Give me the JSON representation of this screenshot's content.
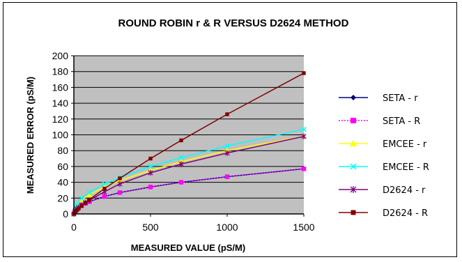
{
  "chart_data": {
    "type": "line",
    "title": "ROUND ROBIN r & R VERSUS D2624 METHOD",
    "xlabel": "MEASURED VALUE (pS/M)",
    "ylabel": "MEASURED ERROR (pS/M)",
    "xlim": [
      0,
      1500
    ],
    "ylim": [
      0,
      200
    ],
    "xticks": [
      0,
      500,
      1000,
      1500
    ],
    "yticks": [
      0,
      20,
      40,
      60,
      80,
      100,
      120,
      140,
      160,
      180,
      200
    ],
    "grid": true,
    "plot_background": "#c0c0c0",
    "legend_position": "right",
    "series": [
      {
        "name": "SETA - r",
        "color": "#000080",
        "marker": "diamond",
        "dash": "solid",
        "x": [
          0,
          5,
          10,
          20,
          30,
          50,
          75,
          100,
          200,
          300,
          500,
          700,
          1000,
          1500
        ],
        "y": [
          0,
          3.5,
          5,
          7,
          8.5,
          11,
          13.5,
          15.5,
          22,
          27,
          34,
          40,
          47,
          57
        ]
      },
      {
        "name": "SETA - R",
        "color": "#ff00ff",
        "marker": "square",
        "dash": "dotted",
        "x": [
          0,
          5,
          10,
          20,
          30,
          50,
          75,
          100,
          200,
          300,
          500,
          700,
          1000,
          1500
        ],
        "y": [
          0,
          3.5,
          5,
          7,
          8.5,
          11,
          13.5,
          15.5,
          22,
          27,
          34,
          40,
          47,
          57
        ]
      },
      {
        "name": "EMCEE - r",
        "color": "#ffff00",
        "marker": "triangle",
        "dash": "solid",
        "x": [
          0,
          10,
          20,
          50,
          100,
          200,
          300,
          500,
          700,
          1000,
          1500
        ],
        "y": [
          0,
          8,
          12,
          18,
          24,
          34,
          42,
          55,
          66,
          80,
          98
        ]
      },
      {
        "name": "EMCEE - R",
        "color": "#00ffff",
        "marker": "x",
        "dash": "solid",
        "x": [
          0,
          10,
          20,
          50,
          100,
          200,
          300,
          500,
          700,
          1000,
          1500
        ],
        "y": [
          0,
          9,
          13,
          20,
          27,
          38,
          46,
          60,
          71,
          86,
          107
        ]
      },
      {
        "name": "D2624 - r",
        "color": "#800080",
        "marker": "star",
        "dash": "solid",
        "x": [
          0,
          10,
          20,
          30,
          50,
          75,
          100,
          200,
          300,
          500,
          700,
          1000,
          1500
        ],
        "y": [
          0,
          4,
          6,
          8,
          11,
          14,
          17,
          28,
          38,
          52,
          63,
          77,
          98
        ]
      },
      {
        "name": "D2624 - R",
        "color": "#800000",
        "marker": "circle",
        "dash": "solid",
        "x": [
          0,
          10,
          20,
          30,
          50,
          75,
          100,
          200,
          300,
          500,
          700,
          1000,
          1500
        ],
        "y": [
          0,
          3,
          5,
          7,
          10,
          14,
          18,
          32,
          45,
          70,
          93,
          126,
          178
        ]
      }
    ]
  }
}
